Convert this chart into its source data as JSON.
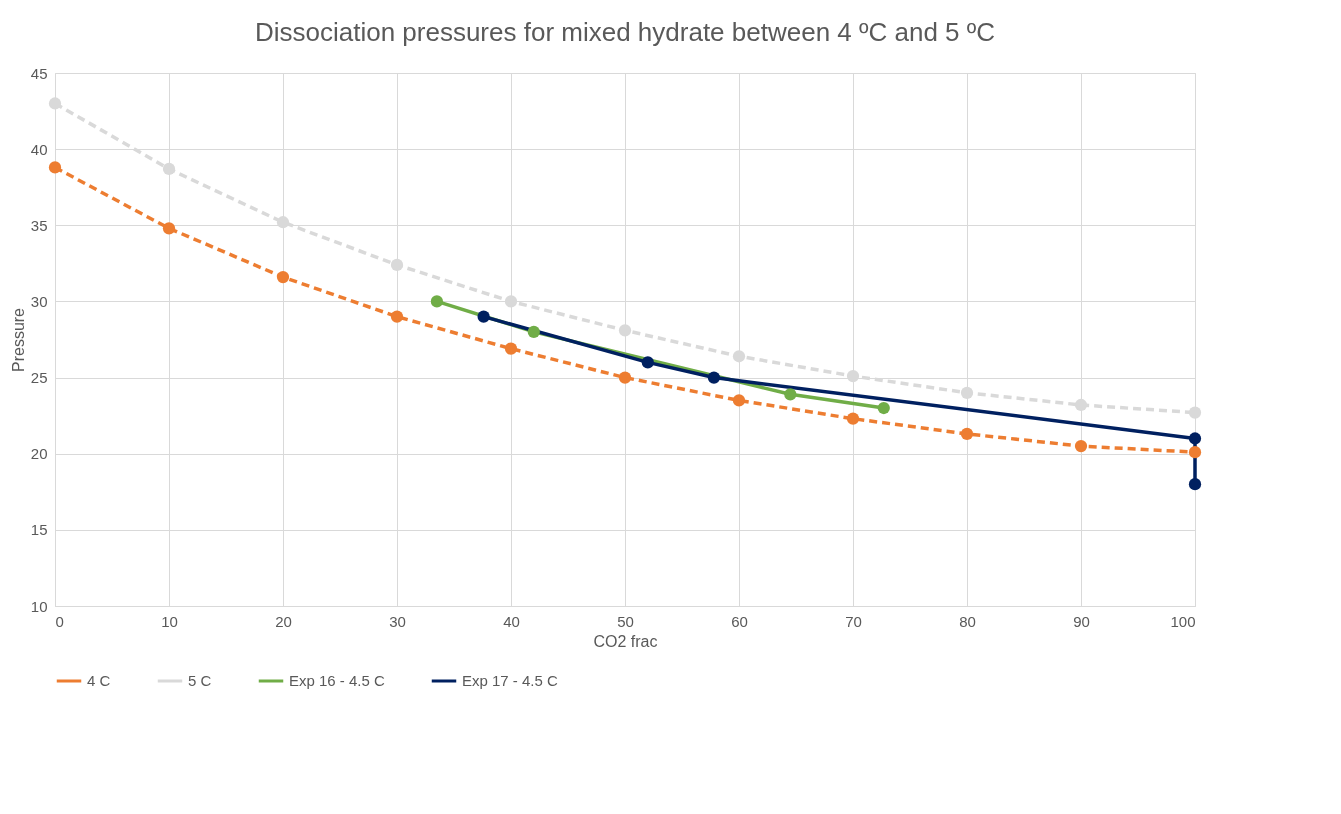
{
  "chart_data": {
    "type": "line",
    "title": "Dissociation pressures for mixed hydrate between 4 ºC and 5 ºC",
    "xlabel": "CO2 frac",
    "ylabel": "Pressure",
    "series": [
      {
        "name": "4 C",
        "color": "#ed7d31",
        "line_style": "dashed",
        "x": [
          0,
          10,
          20,
          30,
          40,
          50,
          60,
          70,
          80,
          90,
          100
        ],
        "values": [
          38.8,
          34.8,
          31.6,
          29.0,
          26.9,
          25.0,
          23.5,
          22.3,
          21.3,
          20.5,
          20.1
        ]
      },
      {
        "name": "5 C",
        "color": "#d9d9d9",
        "line_style": "dashed",
        "x": [
          0,
          10,
          20,
          30,
          40,
          50,
          60,
          70,
          80,
          90,
          100
        ],
        "values": [
          43.0,
          38.7,
          35.2,
          32.4,
          30.0,
          28.1,
          26.4,
          25.1,
          24.0,
          23.2,
          22.7
        ]
      },
      {
        "name": "Exp 16 - 4.5 C",
        "color": "#70ad47",
        "line_style": "solid",
        "x": [
          33.5,
          42.0,
          64.5,
          72.7
        ],
        "values": [
          30.0,
          28.0,
          23.9,
          23.0
        ]
      },
      {
        "name": "Exp 17 - 4.5 C",
        "color": "#002060",
        "line_style": "solid",
        "x": [
          37.6,
          52.0,
          57.8,
          100,
          100
        ],
        "values": [
          29.0,
          26.0,
          25.0,
          21.0,
          18.0
        ]
      }
    ],
    "marker": "circle",
    "xlim": [
      0,
      100
    ],
    "xticks": [
      0,
      10,
      20,
      30,
      40,
      50,
      60,
      70,
      80,
      90,
      100
    ],
    "ylim": [
      10,
      45
    ],
    "yticks": [
      10,
      15,
      20,
      25,
      30,
      35,
      40,
      45
    ],
    "grid": true,
    "legend": "bottom"
  }
}
